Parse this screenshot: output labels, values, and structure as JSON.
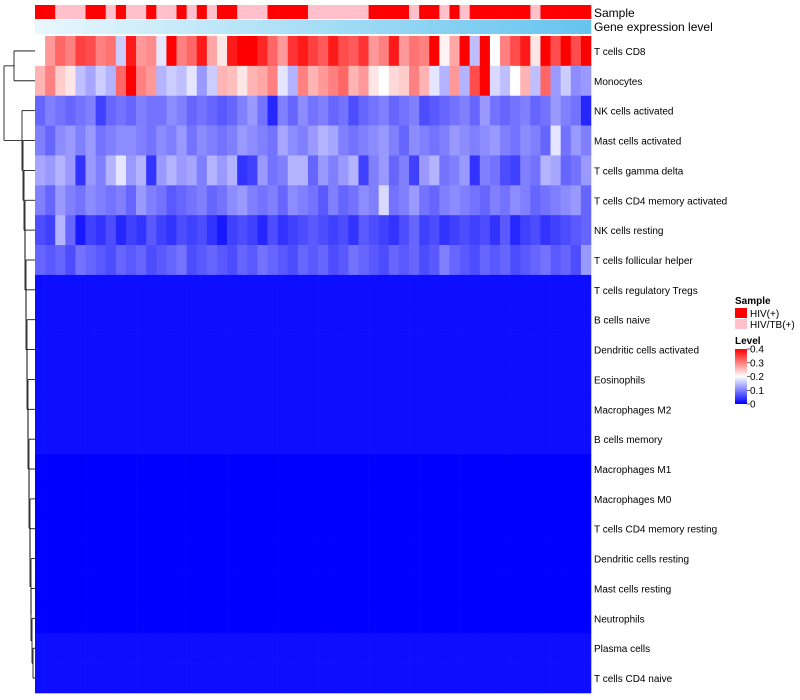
{
  "chart_data": {
    "type": "heatmap",
    "annotation_labels": {
      "sample": "Sample",
      "gene_expression": "Gene expression level"
    },
    "rows": [
      "T cells CD8",
      "Monocytes",
      "NK cells activated",
      "Mast cells activated",
      "T cells gamma delta",
      "T cells CD4 memory activated",
      "NK cells resting",
      "T cells follicular helper",
      "T cells regulatory  Tregs",
      "B cells naive",
      "Dendritic cells activated",
      "Eosinophils",
      "Macrophages M2",
      "B cells memory",
      "Macrophages M1",
      "Macrophages M0",
      "T cells CD4 memory resting",
      "Dendritic cells resting",
      "Mast cells resting",
      "Neutrophils",
      "Plasma cells",
      "T cells CD4 naive"
    ],
    "sample_groups": [
      "HIV(+)",
      "HIV(+)",
      "HIV/TB(+)",
      "HIV/TB(+)",
      "HIV/TB(+)",
      "HIV(+)",
      "HIV(+)",
      "HIV/TB(+)",
      "HIV(+)",
      "HIV/TB(+)",
      "HIV/TB(+)",
      "HIV(+)",
      "HIV/TB(+)",
      "HIV/TB(+)",
      "HIV(+)",
      "HIV/TB(+)",
      "HIV(+)",
      "HIV/TB(+)",
      "HIV(+)",
      "HIV(+)",
      "HIV/TB(+)",
      "HIV/TB(+)",
      "HIV/TB(+)",
      "HIV(+)",
      "HIV(+)",
      "HIV(+)",
      "HIV(+)",
      "HIV/TB(+)",
      "HIV/TB(+)",
      "HIV/TB(+)",
      "HIV/TB(+)",
      "HIV/TB(+)",
      "HIV/TB(+)",
      "HIV(+)",
      "HIV(+)",
      "HIV(+)",
      "HIV(+)",
      "HIV/TB(+)",
      "HIV(+)",
      "HIV(+)",
      "HIV/TB(+)",
      "HIV(+)",
      "HIV/TB(+)",
      "HIV(+)",
      "HIV(+)",
      "HIV(+)",
      "HIV(+)",
      "HIV(+)",
      "HIV(+)",
      "HIV/TB(+)",
      "HIV(+)",
      "HIV(+)",
      "HIV(+)",
      "HIV(+)",
      "HIV(+)"
    ],
    "expression_gradient": [
      "#e8f7fc",
      "#66c4ef"
    ],
    "values": [
      [
        0.2,
        0.28,
        0.32,
        0.3,
        0.35,
        0.34,
        0.3,
        0.31,
        0.16,
        0.38,
        0.28,
        0.29,
        0.18,
        0.4,
        0.3,
        0.32,
        0.38,
        0.27,
        0.22,
        0.38,
        0.4,
        0.42,
        0.37,
        0.32,
        0.28,
        0.36,
        0.38,
        0.35,
        0.33,
        0.38,
        0.34,
        0.33,
        0.36,
        0.28,
        0.3,
        0.38,
        0.28,
        0.31,
        0.3,
        0.42,
        0.21,
        0.27,
        0.42,
        0.15,
        0.4,
        0.2,
        0.3,
        0.34,
        0.38,
        0.22,
        0.4,
        0.34,
        0.44,
        0.34,
        0.4
      ],
      [
        0.26,
        0.3,
        0.24,
        0.22,
        0.15,
        0.13,
        0.16,
        0.14,
        0.32,
        0.4,
        0.3,
        0.28,
        0.14,
        0.16,
        0.15,
        0.18,
        0.12,
        0.16,
        0.26,
        0.25,
        0.22,
        0.26,
        0.27,
        0.3,
        0.18,
        0.14,
        0.3,
        0.26,
        0.28,
        0.3,
        0.32,
        0.26,
        0.28,
        0.22,
        0.2,
        0.23,
        0.24,
        0.3,
        0.26,
        0.18,
        0.14,
        0.28,
        0.14,
        0.34,
        0.4,
        0.17,
        0.15,
        0.2,
        0.26,
        0.15,
        0.32,
        0.12,
        0.16,
        0.11,
        0.12
      ],
      [
        0.08,
        0.1,
        0.09,
        0.08,
        0.09,
        0.1,
        0.05,
        0.08,
        0.09,
        0.08,
        0.1,
        0.09,
        0.09,
        0.11,
        0.1,
        0.08,
        0.09,
        0.08,
        0.07,
        0.08,
        0.1,
        0.12,
        0.09,
        0.03,
        0.1,
        0.08,
        0.11,
        0.09,
        0.1,
        0.08,
        0.09,
        0.06,
        0.08,
        0.09,
        0.1,
        0.08,
        0.09,
        0.1,
        0.06,
        0.07,
        0.08,
        0.09,
        0.1,
        0.08,
        0.12,
        0.09,
        0.08,
        0.09,
        0.1,
        0.08,
        0.09,
        0.12,
        0.1,
        0.09,
        0.03
      ],
      [
        0.1,
        0.08,
        0.11,
        0.12,
        0.1,
        0.12,
        0.09,
        0.1,
        0.11,
        0.11,
        0.1,
        0.09,
        0.11,
        0.1,
        0.12,
        0.09,
        0.11,
        0.1,
        0.09,
        0.1,
        0.12,
        0.11,
        0.1,
        0.09,
        0.13,
        0.11,
        0.1,
        0.12,
        0.14,
        0.13,
        0.1,
        0.09,
        0.1,
        0.11,
        0.12,
        0.1,
        0.08,
        0.11,
        0.1,
        0.09,
        0.1,
        0.12,
        0.11,
        0.1,
        0.11,
        0.12,
        0.1,
        0.09,
        0.11,
        0.1,
        0.08,
        0.18,
        0.09,
        0.12,
        0.1
      ],
      [
        0.13,
        0.12,
        0.14,
        0.12,
        0.04,
        0.12,
        0.1,
        0.14,
        0.18,
        0.12,
        0.14,
        0.04,
        0.12,
        0.14,
        0.12,
        0.13,
        0.1,
        0.14,
        0.12,
        0.14,
        0.04,
        0.05,
        0.12,
        0.09,
        0.1,
        0.14,
        0.14,
        0.08,
        0.12,
        0.1,
        0.12,
        0.14,
        0.05,
        0.1,
        0.12,
        0.08,
        0.1,
        0.05,
        0.12,
        0.14,
        0.09,
        0.1,
        0.12,
        0.04,
        0.1,
        0.09,
        0.06,
        0.05,
        0.1,
        0.09,
        0.14,
        0.13,
        0.08,
        0.09,
        0.12
      ],
      [
        0.1,
        0.08,
        0.12,
        0.1,
        0.09,
        0.11,
        0.1,
        0.09,
        0.1,
        0.08,
        0.12,
        0.1,
        0.09,
        0.07,
        0.08,
        0.09,
        0.1,
        0.08,
        0.09,
        0.11,
        0.12,
        0.1,
        0.09,
        0.1,
        0.08,
        0.11,
        0.1,
        0.09,
        0.07,
        0.1,
        0.08,
        0.09,
        0.11,
        0.1,
        0.17,
        0.09,
        0.1,
        0.12,
        0.09,
        0.08,
        0.1,
        0.11,
        0.1,
        0.09,
        0.08,
        0.1,
        0.09,
        0.11,
        0.1,
        0.08,
        0.09,
        0.1,
        0.11,
        0.12,
        0.08
      ],
      [
        0.06,
        0.05,
        0.14,
        0.08,
        0.02,
        0.05,
        0.04,
        0.06,
        0.03,
        0.05,
        0.04,
        0.07,
        0.05,
        0.04,
        0.06,
        0.05,
        0.06,
        0.04,
        0.02,
        0.05,
        0.06,
        0.05,
        0.03,
        0.06,
        0.04,
        0.05,
        0.06,
        0.07,
        0.06,
        0.05,
        0.06,
        0.04,
        0.07,
        0.06,
        0.05,
        0.04,
        0.06,
        0.08,
        0.05,
        0.06,
        0.04,
        0.05,
        0.06,
        0.05,
        0.06,
        0.04,
        0.07,
        0.03,
        0.05,
        0.06,
        0.04,
        0.05,
        0.06,
        0.07,
        0.08
      ],
      [
        0.08,
        0.07,
        0.08,
        0.06,
        0.09,
        0.08,
        0.07,
        0.06,
        0.08,
        0.07,
        0.08,
        0.06,
        0.07,
        0.08,
        0.09,
        0.06,
        0.07,
        0.08,
        0.07,
        0.06,
        0.08,
        0.07,
        0.09,
        0.08,
        0.07,
        0.06,
        0.08,
        0.07,
        0.08,
        0.06,
        0.07,
        0.09,
        0.08,
        0.07,
        0.06,
        0.08,
        0.07,
        0.08,
        0.06,
        0.07,
        0.1,
        0.08,
        0.07,
        0.06,
        0.08,
        0.07,
        0.08,
        0.06,
        0.07,
        0.08,
        0.09,
        0.07,
        0.08,
        0.06,
        0.12
      ],
      [
        0.01,
        0.01,
        0.01,
        0.01,
        0.01,
        0.01,
        0.01,
        0.01,
        0.01,
        0.01,
        0.01,
        0.01,
        0.01,
        0.01,
        0.01,
        0.01,
        0.01,
        0.01,
        0.01,
        0.01,
        0.01,
        0.01,
        0.01,
        0.01,
        0.01,
        0.01,
        0.01,
        0.01,
        0.01,
        0.01,
        0.01,
        0.01,
        0.01,
        0.01,
        0.01,
        0.01,
        0.01,
        0.01,
        0.01,
        0.01,
        0.01,
        0.01,
        0.01,
        0.01,
        0.01,
        0.01,
        0.01,
        0.01,
        0.01,
        0.01,
        0.01,
        0.01,
        0.01,
        0.01,
        0.01
      ],
      [
        0.01,
        0.01,
        0.01,
        0.01,
        0.01,
        0.01,
        0.01,
        0.01,
        0.01,
        0.01,
        0.01,
        0.01,
        0.01,
        0.01,
        0.01,
        0.01,
        0.01,
        0.01,
        0.01,
        0.01,
        0.01,
        0.01,
        0.01,
        0.01,
        0.01,
        0.01,
        0.01,
        0.01,
        0.01,
        0.01,
        0.01,
        0.01,
        0.01,
        0.01,
        0.01,
        0.01,
        0.01,
        0.01,
        0.01,
        0.01,
        0.01,
        0.01,
        0.01,
        0.01,
        0.01,
        0.01,
        0.01,
        0.01,
        0.01,
        0.01,
        0.01,
        0.01,
        0.01,
        0.01,
        0.01
      ],
      [
        0.01,
        0.01,
        0.01,
        0.01,
        0.01,
        0.01,
        0.01,
        0.01,
        0.01,
        0.01,
        0.01,
        0.01,
        0.01,
        0.01,
        0.01,
        0.01,
        0.01,
        0.01,
        0.01,
        0.01,
        0.01,
        0.01,
        0.01,
        0.01,
        0.01,
        0.01,
        0.01,
        0.01,
        0.01,
        0.01,
        0.01,
        0.01,
        0.01,
        0.01,
        0.01,
        0.01,
        0.01,
        0.01,
        0.01,
        0.01,
        0.01,
        0.01,
        0.01,
        0.01,
        0.01,
        0.01,
        0.01,
        0.01,
        0.01,
        0.01,
        0.01,
        0.01,
        0.01,
        0.01,
        0.01
      ],
      [
        0.01,
        0.01,
        0.01,
        0.01,
        0.01,
        0.01,
        0.01,
        0.01,
        0.01,
        0.01,
        0.01,
        0.01,
        0.01,
        0.01,
        0.01,
        0.01,
        0.01,
        0.01,
        0.01,
        0.01,
        0.01,
        0.01,
        0.01,
        0.01,
        0.01,
        0.01,
        0.01,
        0.01,
        0.01,
        0.01,
        0.01,
        0.01,
        0.01,
        0.01,
        0.01,
        0.01,
        0.01,
        0.01,
        0.01,
        0.01,
        0.01,
        0.01,
        0.01,
        0.01,
        0.01,
        0.01,
        0.01,
        0.01,
        0.01,
        0.01,
        0.01,
        0.01,
        0.01,
        0.01,
        0.01
      ],
      [
        0.01,
        0.01,
        0.01,
        0.01,
        0.01,
        0.01,
        0.01,
        0.01,
        0.01,
        0.01,
        0.01,
        0.01,
        0.01,
        0.01,
        0.01,
        0.01,
        0.01,
        0.01,
        0.01,
        0.01,
        0.01,
        0.01,
        0.01,
        0.01,
        0.01,
        0.01,
        0.01,
        0.01,
        0.01,
        0.01,
        0.01,
        0.01,
        0.01,
        0.01,
        0.01,
        0.01,
        0.01,
        0.01,
        0.01,
        0.01,
        0.01,
        0.01,
        0.01,
        0.01,
        0.01,
        0.01,
        0.01,
        0.01,
        0.01,
        0.01,
        0.01,
        0.01,
        0.01,
        0.01,
        0.01
      ],
      [
        0.01,
        0.01,
        0.01,
        0.01,
        0.01,
        0.01,
        0.01,
        0.01,
        0.01,
        0.01,
        0.01,
        0.01,
        0.01,
        0.01,
        0.01,
        0.01,
        0.01,
        0.01,
        0.01,
        0.01,
        0.01,
        0.01,
        0.01,
        0.01,
        0.01,
        0.01,
        0.01,
        0.01,
        0.01,
        0.01,
        0.01,
        0.01,
        0.01,
        0.01,
        0.01,
        0.01,
        0.01,
        0.01,
        0.01,
        0.01,
        0.01,
        0.01,
        0.01,
        0.01,
        0.01,
        0.01,
        0.01,
        0.01,
        0.01,
        0.01,
        0.01,
        0.01,
        0.01,
        0.01,
        0.01
      ],
      [
        0.0,
        0.0,
        0.0,
        0.0,
        0.0,
        0.0,
        0.0,
        0.0,
        0.0,
        0.0,
        0.0,
        0.0,
        0.0,
        0.0,
        0.0,
        0.0,
        0.0,
        0.0,
        0.0,
        0.0,
        0.0,
        0.0,
        0.0,
        0.0,
        0.0,
        0.0,
        0.0,
        0.0,
        0.0,
        0.0,
        0.0,
        0.0,
        0.0,
        0.0,
        0.0,
        0.0,
        0.0,
        0.0,
        0.0,
        0.0,
        0.0,
        0.0,
        0.0,
        0.0,
        0.0,
        0.0,
        0.0,
        0.0,
        0.0,
        0.0,
        0.0,
        0.0,
        0.0,
        0.0,
        0.0
      ],
      [
        0.0,
        0.0,
        0.0,
        0.0,
        0.0,
        0.0,
        0.0,
        0.0,
        0.0,
        0.0,
        0.0,
        0.0,
        0.0,
        0.0,
        0.0,
        0.0,
        0.0,
        0.0,
        0.0,
        0.0,
        0.0,
        0.0,
        0.0,
        0.0,
        0.0,
        0.0,
        0.0,
        0.0,
        0.0,
        0.0,
        0.0,
        0.0,
        0.0,
        0.0,
        0.0,
        0.0,
        0.0,
        0.0,
        0.0,
        0.0,
        0.0,
        0.0,
        0.0,
        0.0,
        0.0,
        0.0,
        0.0,
        0.0,
        0.0,
        0.0,
        0.0,
        0.0,
        0.0,
        0.0,
        0.0
      ],
      [
        0.0,
        0.0,
        0.0,
        0.0,
        0.0,
        0.0,
        0.0,
        0.0,
        0.0,
        0.0,
        0.0,
        0.0,
        0.0,
        0.0,
        0.0,
        0.0,
        0.0,
        0.0,
        0.0,
        0.0,
        0.0,
        0.0,
        0.0,
        0.0,
        0.0,
        0.0,
        0.0,
        0.0,
        0.0,
        0.0,
        0.0,
        0.0,
        0.0,
        0.0,
        0.0,
        0.0,
        0.0,
        0.0,
        0.0,
        0.0,
        0.0,
        0.0,
        0.0,
        0.0,
        0.0,
        0.0,
        0.0,
        0.0,
        0.0,
        0.0,
        0.0,
        0.0,
        0.0,
        0.0,
        0.0
      ],
      [
        0.0,
        0.0,
        0.0,
        0.0,
        0.0,
        0.0,
        0.0,
        0.0,
        0.0,
        0.0,
        0.0,
        0.0,
        0.0,
        0.0,
        0.0,
        0.0,
        0.0,
        0.0,
        0.0,
        0.0,
        0.0,
        0.0,
        0.0,
        0.0,
        0.0,
        0.0,
        0.0,
        0.0,
        0.0,
        0.0,
        0.0,
        0.0,
        0.0,
        0.0,
        0.0,
        0.0,
        0.0,
        0.0,
        0.0,
        0.0,
        0.0,
        0.0,
        0.0,
        0.0,
        0.0,
        0.0,
        0.0,
        0.0,
        0.0,
        0.0,
        0.0,
        0.0,
        0.0,
        0.0,
        0.0
      ],
      [
        0.0,
        0.0,
        0.0,
        0.0,
        0.0,
        0.0,
        0.0,
        0.0,
        0.0,
        0.0,
        0.0,
        0.0,
        0.0,
        0.0,
        0.0,
        0.0,
        0.0,
        0.0,
        0.0,
        0.0,
        0.0,
        0.0,
        0.0,
        0.0,
        0.0,
        0.0,
        0.0,
        0.0,
        0.0,
        0.0,
        0.0,
        0.0,
        0.0,
        0.0,
        0.0,
        0.0,
        0.0,
        0.0,
        0.0,
        0.0,
        0.0,
        0.0,
        0.0,
        0.0,
        0.0,
        0.0,
        0.0,
        0.0,
        0.0,
        0.0,
        0.0,
        0.0,
        0.0,
        0.0,
        0.0
      ],
      [
        0.0,
        0.0,
        0.0,
        0.0,
        0.0,
        0.0,
        0.0,
        0.0,
        0.0,
        0.0,
        0.0,
        0.0,
        0.0,
        0.0,
        0.0,
        0.0,
        0.0,
        0.0,
        0.0,
        0.0,
        0.0,
        0.0,
        0.0,
        0.0,
        0.0,
        0.0,
        0.0,
        0.0,
        0.0,
        0.0,
        0.0,
        0.0,
        0.0,
        0.0,
        0.0,
        0.0,
        0.0,
        0.0,
        0.0,
        0.0,
        0.0,
        0.0,
        0.0,
        0.0,
        0.0,
        0.0,
        0.0,
        0.0,
        0.0,
        0.0,
        0.0,
        0.0,
        0.0,
        0.0,
        0.0
      ],
      [
        0.01,
        0.01,
        0.01,
        0.01,
        0.01,
        0.01,
        0.01,
        0.01,
        0.01,
        0.01,
        0.01,
        0.01,
        0.01,
        0.01,
        0.01,
        0.01,
        0.01,
        0.01,
        0.01,
        0.01,
        0.01,
        0.01,
        0.01,
        0.01,
        0.01,
        0.01,
        0.01,
        0.01,
        0.01,
        0.01,
        0.01,
        0.01,
        0.01,
        0.01,
        0.01,
        0.01,
        0.01,
        0.01,
        0.01,
        0.01,
        0.01,
        0.01,
        0.01,
        0.01,
        0.01,
        0.01,
        0.01,
        0.01,
        0.01,
        0.01,
        0.01,
        0.01,
        0.01,
        0.01,
        0.01
      ],
      [
        0.01,
        0.01,
        0.01,
        0.01,
        0.01,
        0.01,
        0.01,
        0.01,
        0.01,
        0.01,
        0.01,
        0.01,
        0.01,
        0.01,
        0.01,
        0.01,
        0.01,
        0.01,
        0.01,
        0.01,
        0.01,
        0.01,
        0.01,
        0.01,
        0.01,
        0.01,
        0.01,
        0.01,
        0.01,
        0.01,
        0.01,
        0.01,
        0.01,
        0.01,
        0.01,
        0.01,
        0.01,
        0.01,
        0.01,
        0.01,
        0.01,
        0.01,
        0.01,
        0.01,
        0.01,
        0.01,
        0.01,
        0.01,
        0.01,
        0.01,
        0.01,
        0.01,
        0.01,
        0.01,
        0.01
      ]
    ],
    "legend": {
      "sample_title": "Sample",
      "sample_items": [
        {
          "label": "HIV(+)",
          "color": "#ff0000"
        },
        {
          "label": "HIV/TB(+)",
          "color": "#ffc0cb"
        }
      ],
      "level_title": "Level",
      "level_ticks": [
        {
          "label": "0.4",
          "value": 0.4
        },
        {
          "label": "0.3",
          "value": 0.3
        },
        {
          "label": "0.2",
          "value": 0.2
        },
        {
          "label": "0.1",
          "value": 0.1
        },
        {
          "label": "0",
          "value": 0
        }
      ],
      "placement": "right"
    },
    "color_scale": {
      "min": 0,
      "mid": 0.2,
      "max": 0.4,
      "low_color": "#0000ff",
      "mid_color": "#ffffff",
      "high_color": "#ff0000"
    }
  }
}
